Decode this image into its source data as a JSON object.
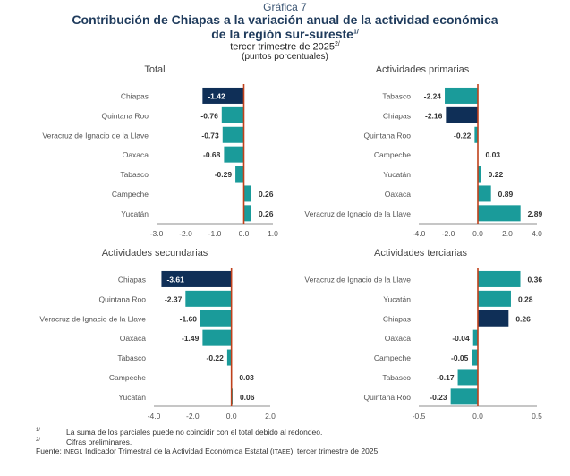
{
  "header": {
    "label": "Gráfica 7",
    "title_line1": "Contribución de Chiapas a la variación anual de la actividad económica",
    "title_line2": "de la región sur-sureste",
    "title_line2_sup": "1/",
    "subtitle": "tercer trimestre de 2025",
    "subtitle_sup": "2/",
    "units": "(puntos porcentuales)"
  },
  "colors": {
    "highlight": "#0f2f57",
    "bar": "#1a9b9a",
    "zero_line": "#c0411b",
    "axis": "#8c8c8c",
    "label_text": "#555555",
    "value_text": "#333333",
    "highlight_value_text": "#ffffff"
  },
  "chart_data": [
    {
      "type": "bar",
      "orientation": "horizontal",
      "title": "Total",
      "categories": [
        "Chiapas",
        "Quintana Roo",
        "Veracruz de Ignacio de la Llave",
        "Oaxaca",
        "Tabasco",
        "Campeche",
        "Yucatán"
      ],
      "values": [
        -1.42,
        -0.76,
        -0.73,
        -0.68,
        -0.29,
        0.26,
        0.26
      ],
      "value_labels": [
        "-1.42",
        "-0.76",
        "-0.73",
        "-0.68",
        "-0.29",
        "0.26",
        "0.26"
      ],
      "highlight": "Chiapas",
      "xlim": [
        -3.0,
        1.0
      ],
      "xticks": [
        -3.0,
        -2.0,
        -1.0,
        0.0,
        1.0
      ],
      "xtick_labels": [
        "-3.0",
        "-2.0",
        "-1.0",
        "0.0",
        "1.0"
      ],
      "grid": false
    },
    {
      "type": "bar",
      "orientation": "horizontal",
      "title": "Actividades primarias",
      "categories": [
        "Tabasco",
        "Chiapas",
        "Quintana Roo",
        "Campeche",
        "Yucatán",
        "Oaxaca",
        "Veracruz de Ignacio de la Llave"
      ],
      "values": [
        -2.24,
        -2.16,
        -0.22,
        0.03,
        0.22,
        0.89,
        2.89
      ],
      "value_labels": [
        "-2.24",
        "-2.16",
        "-0.22",
        "0.03",
        "0.22",
        "0.89",
        "2.89"
      ],
      "highlight": "Chiapas",
      "xlim": [
        -4.0,
        4.0
      ],
      "xticks": [
        -4.0,
        -2.0,
        0.0,
        2.0,
        4.0
      ],
      "xtick_labels": [
        "-4.0",
        "-2.0",
        "0.0",
        "2.0",
        "4.0"
      ],
      "grid": false
    },
    {
      "type": "bar",
      "orientation": "horizontal",
      "title": "Actividades secundarias",
      "categories": [
        "Chiapas",
        "Quintana Roo",
        "Veracruz de Ignacio de la Llave",
        "Oaxaca",
        "Tabasco",
        "Campeche",
        "Yucatán"
      ],
      "values": [
        -3.61,
        -2.37,
        -1.6,
        -1.49,
        -0.22,
        0.03,
        0.06
      ],
      "value_labels": [
        "-3.61",
        "-2.37",
        "-1.60",
        "-1.49",
        "-0.22",
        "0.03",
        "0.06"
      ],
      "highlight": "Chiapas",
      "xlim": [
        -4.0,
        2.0
      ],
      "xticks": [
        -4.0,
        -2.0,
        0.0,
        2.0
      ],
      "xtick_labels": [
        "-4.0",
        "-2.0",
        "0.0",
        "2.0"
      ],
      "grid": false
    },
    {
      "type": "bar",
      "orientation": "horizontal",
      "title": "Actividades terciarias",
      "categories": [
        "Veracruz de Ignacio de la Llave",
        "Yucatán",
        "Chiapas",
        "Oaxaca",
        "Campeche",
        "Tabasco",
        "Quintana Roo"
      ],
      "values": [
        0.36,
        0.28,
        0.26,
        -0.04,
        -0.05,
        -0.17,
        -0.23
      ],
      "value_labels": [
        "0.36",
        "0.28",
        "0.26",
        "-0.04",
        "-0.05",
        "-0.17",
        "-0.23"
      ],
      "highlight": "Chiapas",
      "xlim": [
        -0.5,
        0.5
      ],
      "xticks": [
        -0.5,
        0.0,
        0.5
      ],
      "xtick_labels": [
        "-0.5",
        "0.0",
        "0.5"
      ],
      "grid": false
    }
  ],
  "footnotes": [
    {
      "mark": "1/",
      "text": "La suma de los parciales puede no coincidir con el total debido al redondeo."
    },
    {
      "mark": "2/",
      "text": "Cifras preliminares."
    }
  ],
  "source": {
    "label": "Fuente:",
    "org": "INEGI",
    "text_before": ". Indicador Trimestral de la Actividad Económica Estatal (",
    "abbr": "ITAEE",
    "text_after": "), tercer trimestre de 2025."
  }
}
